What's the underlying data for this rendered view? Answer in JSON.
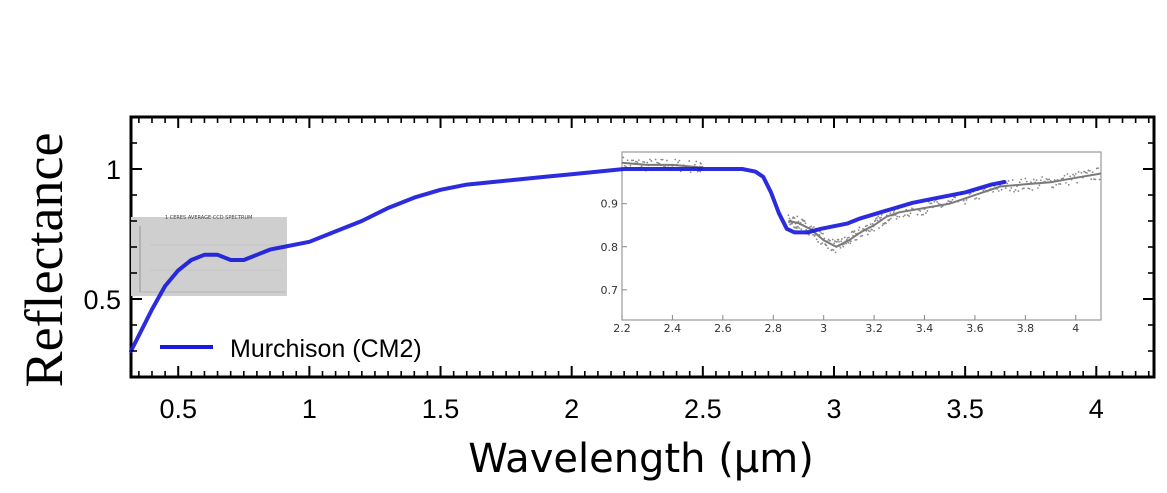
{
  "chart_data": {
    "type": "line",
    "title": "",
    "xlabel": "Wavelength (μm)",
    "ylabel": "Reflectance",
    "xlim": [
      0.32,
      4.22
    ],
    "ylim": [
      0.2,
      1.2
    ],
    "xticks": [
      0.5,
      1,
      1.5,
      2,
      2.5,
      3,
      3.5,
      4
    ],
    "xtick_labels": [
      "0.5",
      "1",
      "1.5",
      "2",
      "2.5",
      "3",
      "3.5",
      "4"
    ],
    "yticks": [
      0.5,
      1
    ],
    "ytick_labels": [
      "0.5",
      "1"
    ],
    "legend_position": "bottom-left",
    "grid": false,
    "series": [
      {
        "name": "Murchison (CM2)",
        "color": "#1a1adc",
        "x": [
          0.32,
          0.35,
          0.4,
          0.45,
          0.5,
          0.55,
          0.6,
          0.65,
          0.7,
          0.75,
          0.8,
          0.85,
          0.9,
          1.0,
          1.1,
          1.2,
          1.3,
          1.4,
          1.5,
          1.6,
          1.7,
          1.8,
          1.9,
          2.0,
          2.1,
          2.2,
          2.3,
          2.4,
          2.5,
          2.6,
          2.65,
          2.7,
          2.73,
          2.76,
          2.79,
          2.82,
          2.85,
          2.9,
          2.95,
          3.0,
          3.05,
          3.1,
          3.2,
          3.3,
          3.4,
          3.5,
          3.6,
          3.65
        ],
        "y": [
          0.3,
          0.36,
          0.46,
          0.55,
          0.61,
          0.65,
          0.67,
          0.67,
          0.65,
          0.65,
          0.67,
          0.69,
          0.7,
          0.72,
          0.76,
          0.8,
          0.85,
          0.89,
          0.92,
          0.94,
          0.95,
          0.96,
          0.97,
          0.98,
          0.99,
          1.0,
          1.0,
          1.0,
          1.0,
          1.0,
          1.0,
          0.99,
          0.97,
          0.91,
          0.83,
          0.77,
          0.756,
          0.756,
          0.77,
          0.78,
          0.79,
          0.81,
          0.84,
          0.87,
          0.89,
          0.91,
          0.94,
          0.95
        ]
      }
    ],
    "inset": {
      "xticks": [
        2.2,
        2.4,
        2.6,
        2.8,
        3,
        3.2,
        3.4,
        3.6,
        3.8,
        4
      ],
      "xtick_labels": [
        "2.2",
        "2.4",
        "2.6",
        "2.8",
        "3",
        "3.2",
        "3.4",
        "3.6",
        "3.8",
        "4"
      ],
      "yticks": [
        0.7,
        0.8,
        0.9
      ],
      "ytick_labels": [
        "0.7",
        "0.8",
        "0.9"
      ],
      "xlim": [
        2.2,
        4.1
      ],
      "ylim": [
        0.63,
        1.02
      ],
      "data": {
        "color": "#777777",
        "x": [
          2.2,
          2.3,
          2.4,
          2.5,
          2.52,
          2.86,
          2.9,
          2.95,
          3.0,
          3.05,
          3.1,
          3.15,
          3.2,
          3.25,
          3.3,
          3.4,
          3.5,
          3.6,
          3.7,
          3.8,
          3.9,
          4.0,
          4.1
        ],
        "y": [
          0.995,
          0.99,
          0.99,
          0.985,
          0.98,
          0.86,
          0.855,
          0.84,
          0.815,
          0.8,
          0.815,
          0.835,
          0.85,
          0.87,
          0.88,
          0.89,
          0.9,
          0.92,
          0.94,
          0.945,
          0.95,
          0.96,
          0.97
        ]
      }
    },
    "thumbnail": {
      "title": "1 CERES AVERAGE CCD SPECTRUM"
    }
  }
}
